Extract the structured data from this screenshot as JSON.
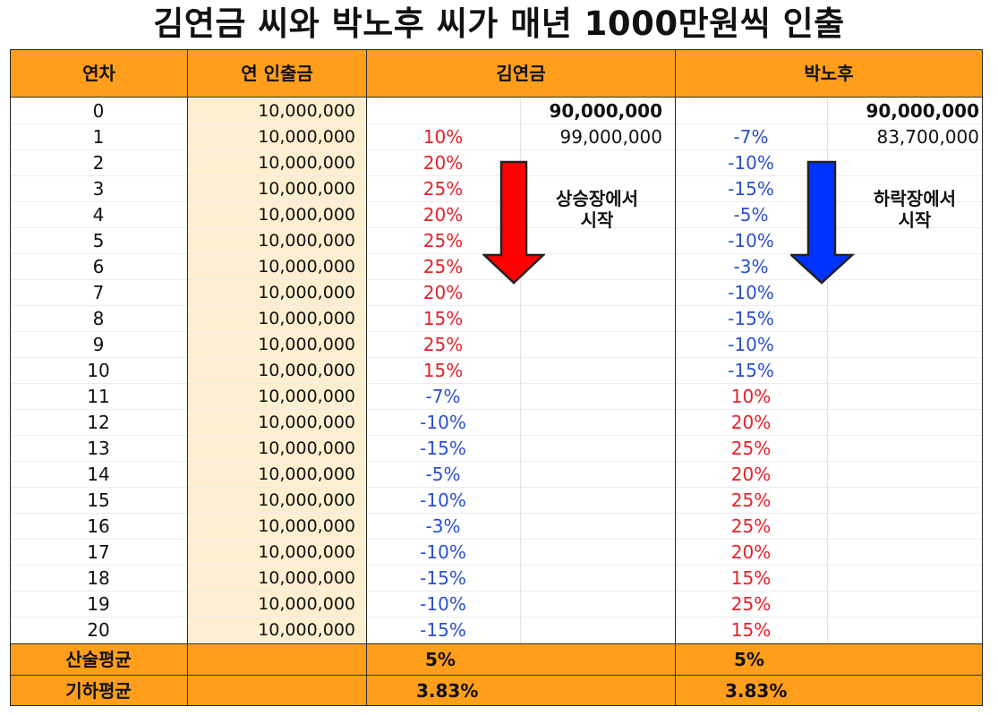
{
  "title": "김연금 씨와 박노후 씨가 매년 1000만원씩 인출",
  "headers": {
    "year": "연차",
    "withdrawal": "연 인출금",
    "kim": "김연금",
    "park": "박노후"
  },
  "colors": {
    "header_bg": "#FF9E1B",
    "withdrawal_bg": "#FEEFD0",
    "positive": "#E8202A",
    "negative": "#2A4FD0",
    "kim_arrow": "#FF0000",
    "park_arrow": "#0033FF"
  },
  "rows": [
    {
      "year": "0",
      "withdrawal": "10,000,000",
      "kim_rate": "",
      "kim_balance": "90,000,000",
      "park_rate": "",
      "park_balance": "90,000,000"
    },
    {
      "year": "1",
      "withdrawal": "10,000,000",
      "kim_rate": "10%",
      "kim_balance": "99,000,000",
      "park_rate": "-7%",
      "park_balance": "83,700,000"
    },
    {
      "year": "2",
      "withdrawal": "10,000,000",
      "kim_rate": "20%",
      "kim_balance": "",
      "park_rate": "-10%",
      "park_balance": ""
    },
    {
      "year": "3",
      "withdrawal": "10,000,000",
      "kim_rate": "25%",
      "kim_balance": "",
      "park_rate": "-15%",
      "park_balance": ""
    },
    {
      "year": "4",
      "withdrawal": "10,000,000",
      "kim_rate": "20%",
      "kim_balance": "",
      "park_rate": "-5%",
      "park_balance": ""
    },
    {
      "year": "5",
      "withdrawal": "10,000,000",
      "kim_rate": "25%",
      "kim_balance": "",
      "park_rate": "-10%",
      "park_balance": ""
    },
    {
      "year": "6",
      "withdrawal": "10,000,000",
      "kim_rate": "25%",
      "kim_balance": "",
      "park_rate": "-3%",
      "park_balance": ""
    },
    {
      "year": "7",
      "withdrawal": "10,000,000",
      "kim_rate": "20%",
      "kim_balance": "",
      "park_rate": "-10%",
      "park_balance": ""
    },
    {
      "year": "8",
      "withdrawal": "10,000,000",
      "kim_rate": "15%",
      "kim_balance": "",
      "park_rate": "-15%",
      "park_balance": ""
    },
    {
      "year": "9",
      "withdrawal": "10,000,000",
      "kim_rate": "25%",
      "kim_balance": "",
      "park_rate": "-10%",
      "park_balance": ""
    },
    {
      "year": "10",
      "withdrawal": "10,000,000",
      "kim_rate": "15%",
      "kim_balance": "",
      "park_rate": "-15%",
      "park_balance": ""
    },
    {
      "year": "11",
      "withdrawal": "10,000,000",
      "kim_rate": "-7%",
      "kim_balance": "",
      "park_rate": "10%",
      "park_balance": ""
    },
    {
      "year": "12",
      "withdrawal": "10,000,000",
      "kim_rate": "-10%",
      "kim_balance": "",
      "park_rate": "20%",
      "park_balance": ""
    },
    {
      "year": "13",
      "withdrawal": "10,000,000",
      "kim_rate": "-15%",
      "kim_balance": "",
      "park_rate": "25%",
      "park_balance": ""
    },
    {
      "year": "14",
      "withdrawal": "10,000,000",
      "kim_rate": "-5%",
      "kim_balance": "",
      "park_rate": "20%",
      "park_balance": ""
    },
    {
      "year": "15",
      "withdrawal": "10,000,000",
      "kim_rate": "-10%",
      "kim_balance": "",
      "park_rate": "25%",
      "park_balance": ""
    },
    {
      "year": "16",
      "withdrawal": "10,000,000",
      "kim_rate": "-3%",
      "kim_balance": "",
      "park_rate": "25%",
      "park_balance": ""
    },
    {
      "year": "17",
      "withdrawal": "10,000,000",
      "kim_rate": "-10%",
      "kim_balance": "",
      "park_rate": "20%",
      "park_balance": ""
    },
    {
      "year": "18",
      "withdrawal": "10,000,000",
      "kim_rate": "-15%",
      "kim_balance": "",
      "park_rate": "15%",
      "park_balance": ""
    },
    {
      "year": "19",
      "withdrawal": "10,000,000",
      "kim_rate": "-10%",
      "kim_balance": "",
      "park_rate": "25%",
      "park_balance": ""
    },
    {
      "year": "20",
      "withdrawal": "10,000,000",
      "kim_rate": "-15%",
      "kim_balance": "",
      "park_rate": "15%",
      "park_balance": ""
    }
  ],
  "summary": [
    {
      "label": "산술평균",
      "kim": "5%",
      "park": "5%"
    },
    {
      "label": "기하평균",
      "kim": "3.83%",
      "park": "3.83%"
    }
  ],
  "annotations": {
    "kim_line1": "상승장에서",
    "kim_line2": "시작",
    "park_line1": "하락장에서",
    "park_line2": "시작"
  }
}
